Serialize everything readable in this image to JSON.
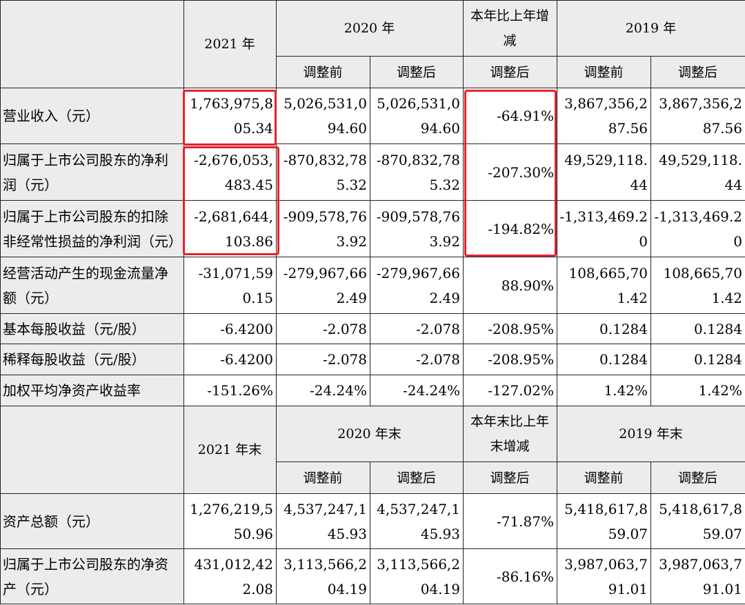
{
  "header1": {
    "year_2021": "2021 年",
    "year_2020": "2020 年",
    "change": "本年比上年增减",
    "year_2019": "2019 年",
    "before": "调整前",
    "after": "调整后"
  },
  "rows1": [
    {
      "label": "营业收入（元）",
      "v2021": "1,763,975,805.34",
      "v2020a": "5,026,531,094.60",
      "v2020b": "5,026,531,094.60",
      "chg": "-64.91%",
      "v2019a": "3,867,356,287.56",
      "v2019b": "3,867,356,287.56"
    },
    {
      "label": "归属于上市公司股东的净利润（元）",
      "v2021": "-2,676,053,483.45",
      "v2020a": "-870,832,785.32",
      "v2020b": "-870,832,785.32",
      "chg": "-207.30%",
      "v2019a": "49,529,118.44",
      "v2019b": "49,529,118.44"
    },
    {
      "label": "归属于上市公司股东的扣除非经常性损益的净利润（元）",
      "v2021": "-2,681,644,103.86",
      "v2020a": "-909,578,763.92",
      "v2020b": "-909,578,763.92",
      "chg": "-194.82%",
      "v2019a": "-1,313,469.20",
      "v2019b": "-1,313,469.20"
    },
    {
      "label": "经营活动产生的现金流量净额（元）",
      "v2021": "-31,071,590.15",
      "v2020a": "-279,967,662.49",
      "v2020b": "-279,967,662.49",
      "chg": "88.90%",
      "v2019a": "108,665,701.42",
      "v2019b": "108,665,701.42"
    },
    {
      "label": "基本每股收益（元/股）",
      "v2021": "-6.4200",
      "v2020a": "-2.078",
      "v2020b": "-2.078",
      "chg": "-208.95%",
      "v2019a": "0.1284",
      "v2019b": "0.1284"
    },
    {
      "label": "稀释每股收益（元/股）",
      "v2021": "-6.4200",
      "v2020a": "-2.078",
      "v2020b": "-2.078",
      "chg": "-208.95%",
      "v2019a": "0.1284",
      "v2019b": "0.1284"
    },
    {
      "label": "加权平均净资产收益率",
      "v2021": "-151.26%",
      "v2020a": "-24.24%",
      "v2020b": "-24.24%",
      "chg": "-127.02%",
      "v2019a": "1.42%",
      "v2019b": "1.42%"
    }
  ],
  "header2": {
    "year_2021": "2021 年末",
    "year_2020": "2020 年末",
    "change": "本年末比上年末增减",
    "year_2019": "2019 年末",
    "before": "调整前",
    "after": "调整后"
  },
  "rows2": [
    {
      "label": "资产总额（元）",
      "v2021": "1,276,219,550.96",
      "v2020a": "4,537,247,145.93",
      "v2020b": "4,537,247,145.93",
      "chg": "-71.87%",
      "v2019a": "5,418,617,859.07",
      "v2019b": "5,418,617,859.07"
    },
    {
      "label": "归属于上市公司股东的净资产（元）",
      "v2021": "431,012,422.08",
      "v2020a": "3,113,566,204.19",
      "v2020b": "3,113,566,204.19",
      "chg": "-86.16%",
      "v2019a": "3,987,063,791.01",
      "v2019b": "3,987,063,791.01"
    }
  ],
  "colors": {
    "highlight": "#e8202a",
    "header_bg": "#ececec",
    "border": "#222222"
  }
}
